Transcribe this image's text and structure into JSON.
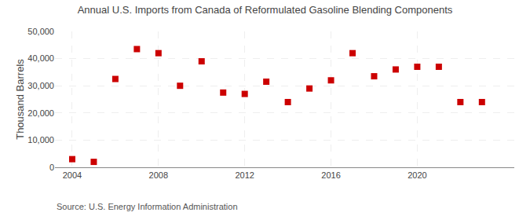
{
  "chart_data": {
    "type": "scatter",
    "title": "Annual U.S. Imports from Canada of Reformulated Gasoline Blending Components",
    "ylabel": "Thousand Barrels",
    "annotations": [
      "Source: U.S. Energy Information Administration"
    ],
    "x": [
      2004,
      2005,
      2006,
      2007,
      2008,
      2009,
      2010,
      2011,
      2012,
      2013,
      2014,
      2015,
      2016,
      2017,
      2018,
      2019,
      2020,
      2021,
      2022,
      2023
    ],
    "values": [
      3000,
      2000,
      32500,
      43500,
      42000,
      30000,
      39000,
      27500,
      27000,
      31500,
      24000,
      29000,
      32000,
      42000,
      33500,
      36000,
      37000,
      37000,
      24000,
      24000
    ],
    "color": "#cc0000",
    "marker": "square",
    "xlim": [
      2003.2,
      2024.5
    ],
    "xticks": [
      2004,
      2008,
      2012,
      2016,
      2020
    ],
    "ylim": [
      0,
      50000
    ],
    "yticks": [
      0,
      {
        "value": 10000,
        "label": "10,000"
      },
      {
        "value": 20000,
        "label": "20,000"
      },
      {
        "value": 30000,
        "label": "30,000"
      },
      {
        "value": 40000,
        "label": "40,000"
      },
      {
        "value": 50000,
        "label": "50,000"
      }
    ],
    "grid": true
  }
}
